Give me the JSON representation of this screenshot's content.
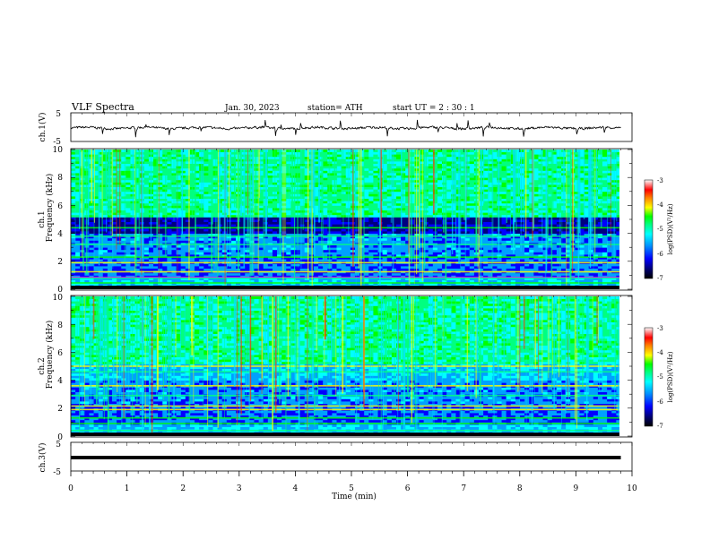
{
  "header": {
    "title": "VLF  Spectra",
    "date": "Jan. 30, 2023",
    "station": "station= ATH",
    "start_ut": "start  UT  =   2  : 30 : 1"
  },
  "chart_data": [
    {
      "type": "line",
      "panel": "ch1-waveform",
      "ylabel": "ch.1(V)",
      "ylim": [
        -5,
        5
      ],
      "y_ticks": [
        "5",
        "-5"
      ],
      "xlim": [
        0,
        10
      ],
      "baseline": 0,
      "trace_end_min": 9.8
    },
    {
      "type": "heatmap",
      "panel": "ch1-spectrogram",
      "ylabel_channel": "ch.1",
      "ylabel": "Frequency  (kHz)",
      "ylim": [
        0,
        10
      ],
      "y_ticks": [
        "0",
        "2",
        "4",
        "6",
        "8",
        "10"
      ],
      "xlim": [
        0,
        10
      ],
      "data_end_min": 9.8,
      "colorbar": {
        "label": "log(PSD)(V²/Hz)",
        "range": [
          -7,
          -3
        ],
        "ticks": [
          "-3",
          "-4",
          "-5",
          "-6",
          "-7"
        ]
      }
    },
    {
      "type": "heatmap",
      "panel": "ch2-spectrogram",
      "ylabel_channel": "ch.2",
      "ylabel": "Frequency  (kHz)",
      "ylim": [
        0,
        10
      ],
      "y_ticks": [
        "0",
        "2",
        "4",
        "6",
        "8",
        "10"
      ],
      "xlim": [
        0,
        10
      ],
      "data_end_min": 9.8,
      "colorbar": {
        "label": "log(PSD)(V²/Hz)",
        "range": [
          -7,
          -3
        ],
        "ticks": [
          "-3",
          "-4",
          "-5",
          "-6",
          "-7"
        ]
      }
    },
    {
      "type": "line",
      "panel": "ch3-waveform",
      "ylabel": "ch.3(V)",
      "ylim": [
        -5,
        5
      ],
      "y_ticks": [
        "5",
        "-5"
      ],
      "xlim": [
        0,
        10
      ],
      "baseline": 0,
      "trace_end_min": 9.8,
      "xlabel": "Time  (min)",
      "x_ticks": [
        "0",
        "1",
        "2",
        "3",
        "4",
        "5",
        "6",
        "7",
        "8",
        "9",
        "10"
      ]
    }
  ],
  "colors": {
    "axes": "#000000",
    "trace": "#000000",
    "colormap": [
      "#000000",
      "#000080",
      "#0000ff",
      "#00a0ff",
      "#00ffff",
      "#00ff80",
      "#00ff00",
      "#ffff00",
      "#ff8000",
      "#ff0000",
      "#ffffff"
    ]
  }
}
